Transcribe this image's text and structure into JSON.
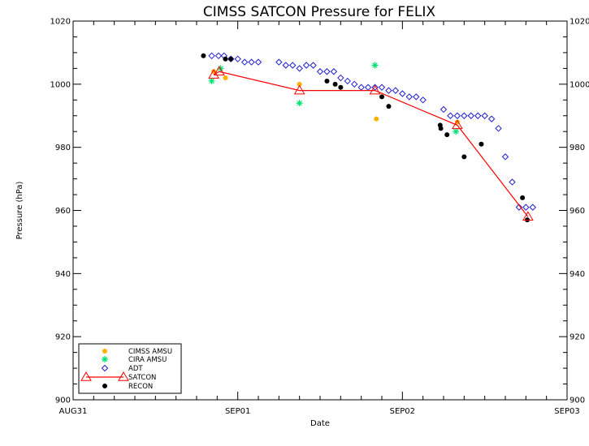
{
  "chart_data": {
    "type": "scatter",
    "title": "CIMSS SATCON Pressure for FELIX",
    "xlabel": "Date",
    "ylabel": "Pressure (hPa)",
    "xlim": [
      0,
      72
    ],
    "ylim": [
      900,
      1020
    ],
    "x_units": "hours since AUG31 00Z",
    "x_ticks": [
      {
        "x": 0,
        "label": "AUG31"
      },
      {
        "x": 24,
        "label": "SEP01"
      },
      {
        "x": 48,
        "label": "SEP02"
      },
      {
        "x": 72,
        "label": "SEP03"
      }
    ],
    "y_ticks": [
      900,
      920,
      940,
      960,
      980,
      1000,
      1020
    ],
    "y_tick_labels": [
      "900",
      "920",
      "940",
      "960",
      "980",
      "1000",
      "1020"
    ],
    "legend": {
      "position": "bottom-left",
      "entries": [
        "CIMSS AMSU",
        "CIRA AMSU",
        "ADT",
        "SATCON",
        "RECON"
      ]
    },
    "series": [
      {
        "name": "CIMSS AMSU",
        "marker": "filled-circle",
        "color": "#ffb000",
        "points": [
          [
            20.5,
            1004
          ],
          [
            22.2,
            1002
          ],
          [
            33,
            1000
          ],
          [
            44.2,
            989
          ],
          [
            56,
            988
          ]
        ]
      },
      {
        "name": "CIRA AMSU",
        "marker": "asterisk",
        "color": "#00e070",
        "points": [
          [
            20.2,
            1001
          ],
          [
            21.5,
            1005
          ],
          [
            33,
            994
          ],
          [
            44,
            1006
          ],
          [
            55.8,
            985
          ]
        ]
      },
      {
        "name": "ADT",
        "marker": "open-diamond",
        "color": "#2020d0",
        "points": [
          [
            20.2,
            1009
          ],
          [
            21.2,
            1009
          ],
          [
            22,
            1009
          ],
          [
            23,
            1008
          ],
          [
            24,
            1008
          ],
          [
            25,
            1007
          ],
          [
            26,
            1007
          ],
          [
            27,
            1007
          ],
          [
            30,
            1007
          ],
          [
            31,
            1006
          ],
          [
            32,
            1006
          ],
          [
            33,
            1005
          ],
          [
            34,
            1006
          ],
          [
            35,
            1006
          ],
          [
            36,
            1004
          ],
          [
            37,
            1004
          ],
          [
            38,
            1004
          ],
          [
            39,
            1002
          ],
          [
            40,
            1001
          ],
          [
            41,
            1000
          ],
          [
            42,
            999
          ],
          [
            43,
            999
          ],
          [
            44,
            999
          ],
          [
            45,
            999
          ],
          [
            46,
            998
          ],
          [
            47,
            998
          ],
          [
            48,
            997
          ],
          [
            49,
            996
          ],
          [
            50,
            996
          ],
          [
            51,
            995
          ],
          [
            54,
            992
          ],
          [
            55,
            990
          ],
          [
            56,
            990
          ],
          [
            57,
            990
          ],
          [
            58,
            990
          ],
          [
            59,
            990
          ],
          [
            60,
            990
          ],
          [
            61,
            989
          ],
          [
            62,
            986
          ],
          [
            63,
            977
          ],
          [
            64,
            969
          ],
          [
            65,
            961
          ],
          [
            66,
            961
          ],
          [
            67,
            961
          ]
        ]
      },
      {
        "name": "SATCON",
        "marker": "open-triangle-line",
        "color": "#ff0000",
        "points": [
          [
            20.5,
            1003
          ],
          [
            21.3,
            1004
          ],
          [
            33,
            998
          ],
          [
            44,
            998
          ],
          [
            56,
            987
          ],
          [
            66.3,
            958
          ]
        ]
      },
      {
        "name": "RECON",
        "marker": "filled-circle",
        "color": "#000000",
        "points": [
          [
            19,
            1009
          ],
          [
            22.2,
            1008
          ],
          [
            23,
            1008
          ],
          [
            37,
            1001
          ],
          [
            38.2,
            1000
          ],
          [
            39,
            999
          ],
          [
            45,
            996
          ],
          [
            46,
            993
          ],
          [
            53.5,
            987
          ],
          [
            53.6,
            986
          ],
          [
            54.5,
            984
          ],
          [
            57,
            977
          ],
          [
            59.5,
            981
          ],
          [
            65.5,
            964
          ],
          [
            66.2,
            957
          ]
        ]
      }
    ]
  }
}
